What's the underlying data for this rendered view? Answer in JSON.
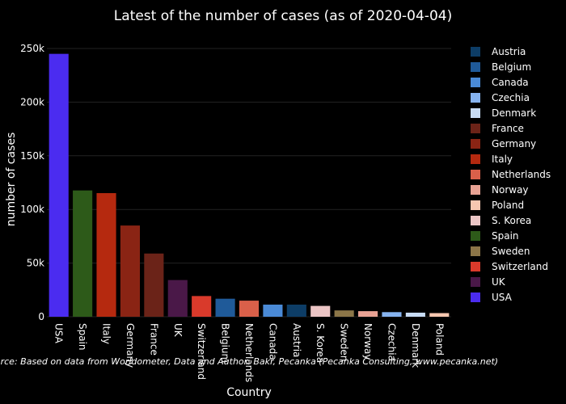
{
  "chart_data": {
    "type": "bar",
    "title": "Latest of the number of cases (as of 2020-04-04)",
    "xlabel": "Country",
    "ylabel": "number of cases",
    "ylim": [
      0,
      250000
    ],
    "yticks": [
      0,
      50000,
      100000,
      150000,
      200000,
      250000
    ],
    "ytick_labels": [
      "0",
      "50k",
      "100k",
      "150k",
      "200k",
      "250k"
    ],
    "categories": [
      "USA",
      "Spain",
      "Italy",
      "Germany",
      "France",
      "UK",
      "Switzerland",
      "Belgium",
      "Netherlands",
      "Canada",
      "Austria",
      "S. Korea",
      "Sweden",
      "Norway",
      "Czechia",
      "Denmark",
      "Poland"
    ],
    "values": [
      245000,
      117700,
      115200,
      85000,
      58900,
      34200,
      19300,
      16800,
      15000,
      11300,
      11300,
      10100,
      5900,
      5200,
      4300,
      3800,
      3400
    ],
    "colors": {
      "Austria": "#0d3d66",
      "Belgium": "#1f5a99",
      "Canada": "#4a8ad6",
      "Czechia": "#86b3ef",
      "Denmark": "#c8dcf5",
      "France": "#6b2318",
      "Germany": "#8a2414",
      "Italy": "#b5290f",
      "Netherlands": "#d9604a",
      "Norway": "#e8a294",
      "Poland": "#f6c7b0",
      "S. Korea": "#ebc5c5",
      "Spain": "#2d5a19",
      "Sweden": "#8c7648",
      "Switzerland": "#d93a2b",
      "UK": "#4a1848",
      "USA": "#4b2cf0"
    },
    "legend": [
      "Austria",
      "Belgium",
      "Canada",
      "Czechia",
      "Denmark",
      "France",
      "Germany",
      "Italy",
      "Netherlands",
      "Norway",
      "Poland",
      "S. Korea",
      "Spain",
      "Sweden",
      "Switzerland",
      "UK",
      "USA"
    ],
    "legend_position": "right",
    "grid": true,
    "annotation": "Source: Based on data from Worldometer, Data and Author: Bakr, Pecanka (Pecanka Consulting, www.pecanka.net)"
  }
}
